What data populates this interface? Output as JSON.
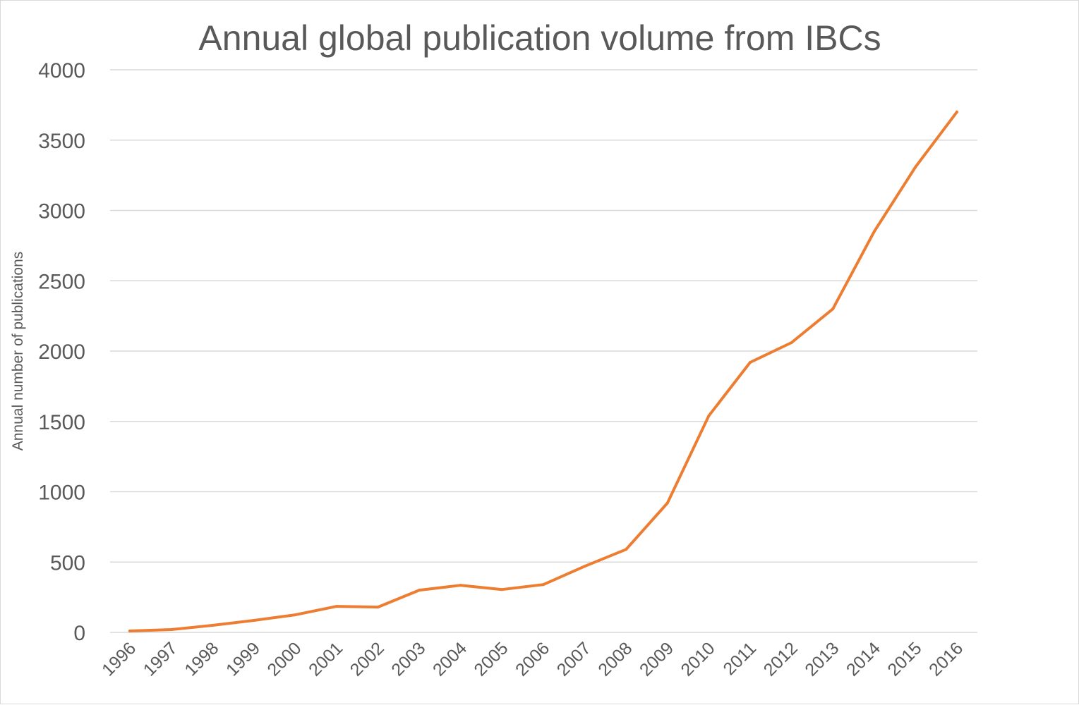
{
  "chart_data": {
    "type": "line",
    "title": "Annual global publication volume from IBCs",
    "xlabel": "",
    "ylabel": "Annual number of publications",
    "categories": [
      "1996",
      "1997",
      "1998",
      "1999",
      "2000",
      "2001",
      "2002",
      "2003",
      "2004",
      "2005",
      "2006",
      "2007",
      "2008",
      "2009",
      "2010",
      "2011",
      "2012",
      "2013",
      "2014",
      "2015",
      "2016"
    ],
    "series": [
      {
        "values": [
          10,
          20,
          50,
          85,
          125,
          185,
          180,
          300,
          335,
          305,
          340,
          470,
          590,
          920,
          1540,
          1920,
          2060,
          2300,
          2850,
          3310,
          3700
        ],
        "color": "#ed7d31"
      }
    ],
    "ylim": [
      0,
      4000
    ],
    "yticks": [
      0,
      500,
      1000,
      1500,
      2000,
      2500,
      3000,
      3500,
      4000
    ],
    "grid": true,
    "gridColor": "#d9d9d9",
    "legend": "none"
  }
}
